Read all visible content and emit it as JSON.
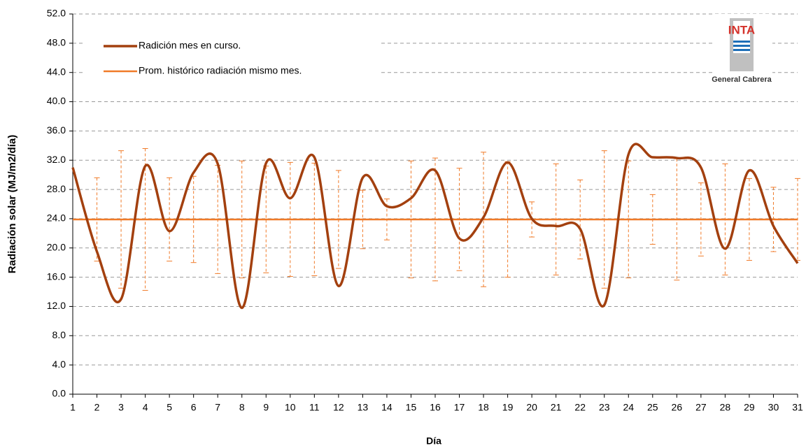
{
  "chart_data": {
    "type": "line",
    "xlabel": "Día",
    "ylabel": "Radiación solar (MJ/m2/día)",
    "categories": [
      "1",
      "2",
      "3",
      "4",
      "5",
      "6",
      "7",
      "8",
      "9",
      "10",
      "11",
      "12",
      "13",
      "14",
      "15",
      "16",
      "17",
      "18",
      "19",
      "20",
      "21",
      "22",
      "23",
      "24",
      "25",
      "26",
      "27",
      "28",
      "29",
      "30",
      "31"
    ],
    "series": [
      {
        "name": "Radición mes en curso.",
        "color": "#a3400f",
        "values": [
          31.0,
          19.5,
          13.0,
          31.2,
          22.3,
          30.3,
          31.5,
          11.8,
          31.6,
          26.8,
          32.4,
          14.8,
          29.6,
          25.7,
          26.8,
          30.6,
          21.3,
          24.2,
          31.7,
          24.0,
          23.0,
          22.6,
          12.2,
          32.8,
          32.4,
          32.3,
          31.0,
          19.9,
          30.6,
          23.0,
          17.9
        ]
      },
      {
        "name": "Prom. histórico radiación mismo mes.",
        "color": "#f07a28",
        "values": [
          23.9,
          23.9,
          23.9,
          23.9,
          23.9,
          23.9,
          23.9,
          23.9,
          23.9,
          23.9,
          23.9,
          23.9,
          23.9,
          23.9,
          23.9,
          23.9,
          23.9,
          23.9,
          23.9,
          23.9,
          23.9,
          23.9,
          23.9,
          23.9,
          23.9,
          23.9,
          23.9,
          23.9,
          23.9,
          23.9,
          23.9
        ],
        "errors": [
          null,
          5.7,
          9.4,
          9.7,
          5.7,
          5.9,
          7.4,
          8.0,
          7.3,
          7.8,
          7.7,
          6.7,
          4.0,
          2.8,
          8.0,
          8.4,
          7.0,
          9.2,
          7.9,
          2.4,
          7.6,
          5.4,
          9.4,
          8.0,
          3.4,
          8.3,
          5.0,
          7.6,
          5.6,
          4.4,
          5.6
        ]
      }
    ],
    "ylim": [
      0,
      52
    ],
    "yticks": [
      {
        "value": 0,
        "label": "0.0"
      },
      {
        "value": 4,
        "label": "4.0"
      },
      {
        "value": 8,
        "label": "8.0"
      },
      {
        "value": 12,
        "label": "12.0"
      },
      {
        "value": 16,
        "label": "16.0"
      },
      {
        "value": 20,
        "label": "20.0"
      },
      {
        "value": 24,
        "label": "24.0"
      },
      {
        "value": 28,
        "label": "28.0"
      },
      {
        "value": 32,
        "label": "32.0"
      },
      {
        "value": 36,
        "label": "36.0"
      },
      {
        "value": 40,
        "label": "40.0"
      },
      {
        "value": 44,
        "label": "44.0"
      },
      {
        "value": 48,
        "label": "48.0"
      },
      {
        "value": 52,
        "label": "52.0"
      }
    ],
    "grid": true,
    "legend": "upper left",
    "logo": {
      "text": "INTA",
      "caption": "General Cabrera"
    }
  }
}
